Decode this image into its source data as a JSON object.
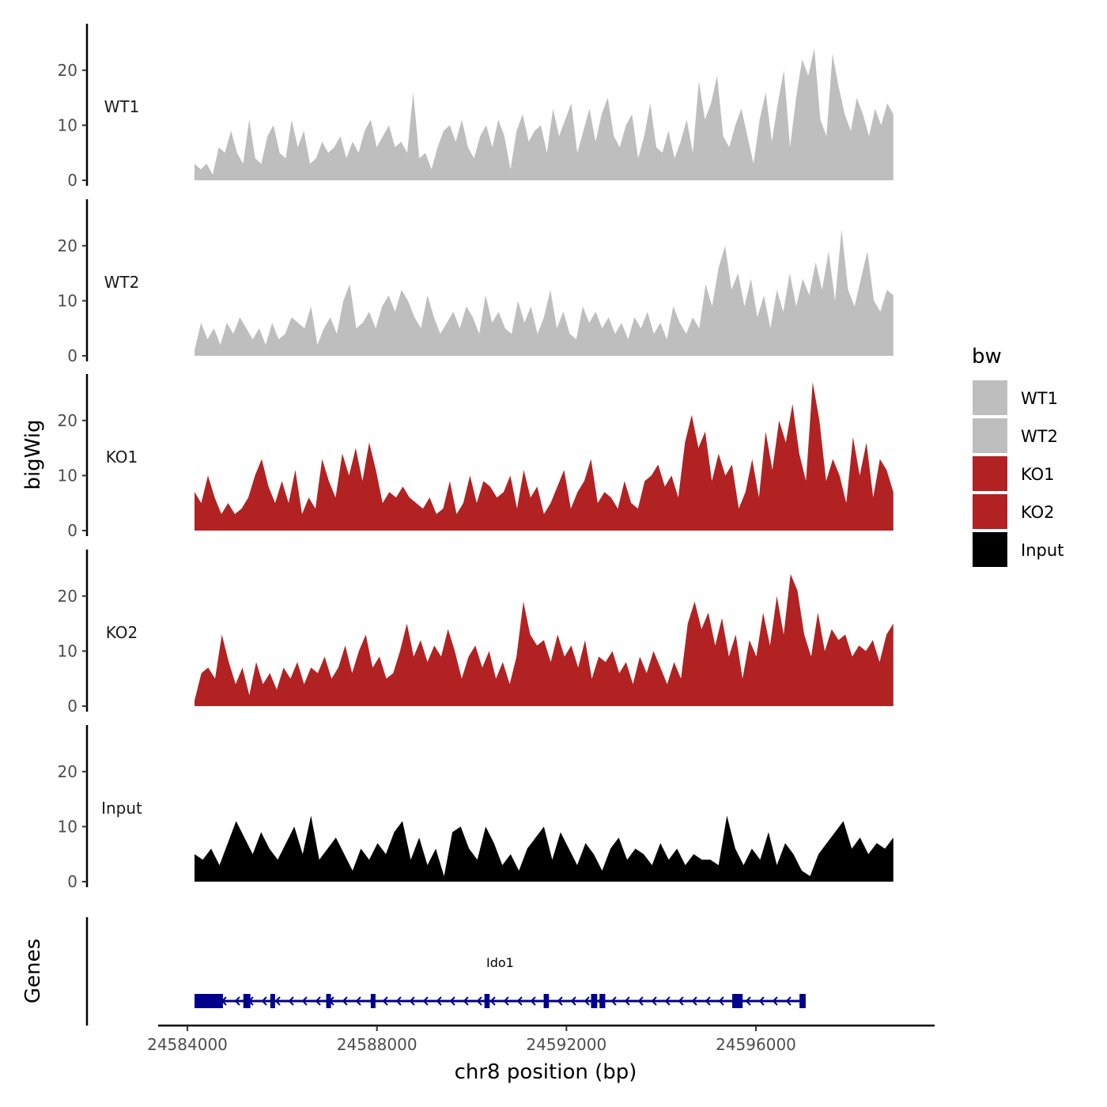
{
  "chart_data": {
    "type": "area",
    "xlabel": "chr8 position (bp)",
    "ylabel": "bigWig",
    "genes_label": "Genes",
    "xlim": [
      24583500,
      24599400
    ],
    "ylim": [
      0,
      28
    ],
    "x_ticks": [
      24584000,
      24588000,
      24592000,
      24596000
    ],
    "x_tick_labels": [
      "24584000",
      "24588000",
      "24592000",
      "24596000"
    ],
    "y_ticks": [
      0,
      10,
      20
    ],
    "y_tick_labels": [
      "0",
      "10",
      "20"
    ],
    "region_start": 24584150,
    "region_end": 24598900,
    "legend": {
      "title": "bw",
      "entries": [
        {
          "label": "WT1",
          "color": "#bebebe"
        },
        {
          "label": "WT2",
          "color": "#bebebe"
        },
        {
          "label": "KO1",
          "color": "#b22222"
        },
        {
          "label": "KO2",
          "color": "#b22222"
        },
        {
          "label": "Input",
          "color": "#000000"
        }
      ]
    },
    "tracks": [
      {
        "name": "WT1",
        "color": "#bebebe",
        "values": [
          3,
          2,
          3,
          1,
          6,
          5,
          9,
          5,
          3,
          11,
          4,
          3,
          8,
          10,
          5,
          4,
          11,
          6,
          9,
          3,
          4,
          7,
          5,
          6,
          8,
          4,
          7,
          5,
          9,
          11,
          6,
          8,
          10,
          6,
          7,
          5,
          16,
          4,
          5,
          2,
          6,
          9,
          10,
          7,
          11,
          6,
          4,
          8,
          10,
          6,
          11,
          8,
          2,
          9,
          12,
          7,
          9,
          10,
          5,
          13,
          8,
          11,
          14,
          5,
          9,
          13,
          7,
          12,
          15,
          8,
          6,
          10,
          12,
          4,
          8,
          14,
          6,
          5,
          9,
          4,
          7,
          11,
          5,
          18,
          11,
          14,
          19,
          8,
          6,
          10,
          13,
          8,
          3,
          11,
          16,
          7,
          14,
          20,
          6,
          15,
          22,
          19,
          24,
          11,
          8,
          23,
          17,
          12,
          9,
          15,
          12,
          8,
          13,
          10,
          14,
          12
        ]
      },
      {
        "name": "WT2",
        "color": "#bebebe",
        "values": [
          1,
          6,
          3,
          5,
          2,
          6,
          4,
          7,
          5,
          3,
          5,
          2,
          6,
          3,
          4,
          7,
          6,
          5,
          9,
          2,
          5,
          7,
          4,
          10,
          13,
          5,
          6,
          8,
          5,
          9,
          11,
          8,
          12,
          10,
          7,
          5,
          11,
          7,
          4,
          6,
          8,
          5,
          9,
          7,
          4,
          11,
          6,
          8,
          5,
          4,
          10,
          6,
          9,
          4,
          7,
          12,
          5,
          8,
          4,
          3,
          9,
          6,
          8,
          5,
          7,
          4,
          6,
          3,
          7,
          5,
          8,
          4,
          6,
          3,
          9,
          6,
          4,
          7,
          5,
          13,
          9,
          16,
          20,
          12,
          15,
          9,
          14,
          7,
          11,
          5,
          12,
          8,
          15,
          9,
          14,
          11,
          17,
          12,
          19,
          10,
          23,
          12,
          9,
          14,
          19,
          10,
          8,
          12,
          11
        ]
      },
      {
        "name": "KO1",
        "color": "#b22222",
        "values": [
          7,
          5,
          10,
          6,
          3,
          5,
          3,
          4,
          6,
          10,
          13,
          8,
          5,
          9,
          5,
          11,
          3,
          6,
          4,
          13,
          9,
          6,
          14,
          10,
          15,
          9,
          16,
          11,
          5,
          7,
          6,
          8,
          6,
          5,
          4,
          6,
          3,
          4,
          9,
          3,
          5,
          10,
          5,
          9,
          8,
          6,
          7,
          10,
          4,
          11,
          6,
          8,
          3,
          5,
          8,
          11,
          4,
          7,
          9,
          13,
          5,
          7,
          6,
          4,
          9,
          5,
          4,
          9,
          10,
          12,
          8,
          10,
          6,
          16,
          21,
          15,
          18,
          9,
          14,
          10,
          12,
          4,
          7,
          13,
          6,
          18,
          11,
          20,
          16,
          23,
          14,
          9,
          27,
          20,
          9,
          13,
          10,
          5,
          17,
          10,
          16,
          6,
          13,
          11,
          7
        ]
      },
      {
        "name": "KO2",
        "color": "#b22222",
        "values": [
          1,
          6,
          7,
          5,
          13,
          8,
          4,
          7,
          2,
          8,
          4,
          6,
          3,
          7,
          5,
          8,
          4,
          7,
          6,
          9,
          5,
          7,
          11,
          6,
          10,
          13,
          7,
          9,
          5,
          6,
          10,
          15,
          9,
          12,
          8,
          11,
          9,
          14,
          10,
          5,
          9,
          11,
          7,
          10,
          5,
          8,
          4,
          9,
          19,
          13,
          11,
          12,
          8,
          13,
          9,
          11,
          7,
          12,
          5,
          9,
          8,
          10,
          6,
          8,
          4,
          9,
          6,
          10,
          7,
          4,
          8,
          5,
          15,
          19,
          14,
          17,
          11,
          16,
          9,
          13,
          5,
          12,
          9,
          17,
          11,
          20,
          13,
          24,
          21,
          13,
          9,
          17,
          10,
          14,
          12,
          13,
          9,
          11,
          10,
          12,
          8,
          13,
          15
        ]
      },
      {
        "name": "Input",
        "color": "#000000",
        "values": [
          5,
          4,
          6,
          3,
          7,
          11,
          8,
          5,
          9,
          6,
          4,
          7,
          10,
          5,
          12,
          4,
          6,
          8,
          5,
          2,
          6,
          4,
          7,
          5,
          9,
          11,
          4,
          8,
          3,
          6,
          1,
          9,
          10,
          6,
          4,
          10,
          7,
          3,
          5,
          2,
          6,
          8,
          10,
          4,
          9,
          6,
          3,
          7,
          5,
          2,
          6,
          8,
          4,
          6,
          5,
          3,
          7,
          4,
          6,
          3,
          5,
          4,
          4,
          3,
          12,
          6,
          3,
          6,
          4,
          9,
          3,
          7,
          5,
          2,
          1,
          5,
          7,
          9,
          11,
          6,
          8,
          5,
          7,
          6,
          8
        ]
      }
    ],
    "gene": {
      "name": "Ido1",
      "start": 24584150,
      "end": 24597050,
      "strand": "-",
      "color": "#00008b",
      "exons": [
        [
          24584150,
          24584750
        ],
        [
          24585180,
          24585330
        ],
        [
          24585750,
          24585800
        ],
        [
          24586930,
          24587030
        ],
        [
          24587870,
          24587950
        ],
        [
          24590270,
          24590380
        ],
        [
          24591520,
          24591630
        ],
        [
          24592520,
          24592650
        ],
        [
          24592700,
          24592820
        ],
        [
          24595500,
          24595720
        ],
        [
          24596920,
          24597050
        ]
      ]
    }
  }
}
